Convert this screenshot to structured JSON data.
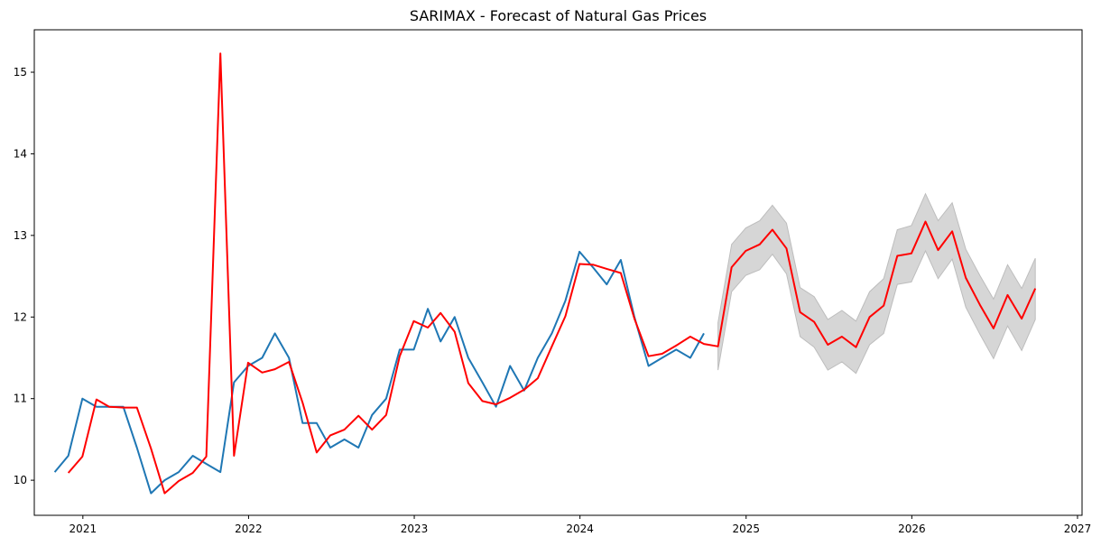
{
  "chart_data": {
    "type": "line",
    "title": "SARIMAX - Forecast of Natural Gas Prices",
    "xlabel": "",
    "ylabel": "",
    "xlim": [
      "2020-09-16",
      "2027-01-11"
    ],
    "ylim": [
      9.57,
      15.52
    ],
    "x_ticks": [
      "2021-01-01",
      "2022-01-01",
      "2023-01-01",
      "2024-01-01",
      "2025-01-01",
      "2026-01-01",
      "2027-01-01"
    ],
    "x_tick_labels": [
      "2021",
      "2022",
      "2023",
      "2024",
      "2025",
      "2026",
      "2027"
    ],
    "y_ticks": [
      10,
      11,
      12,
      13,
      14,
      15
    ],
    "y_tick_labels": [
      "10",
      "11",
      "12",
      "13",
      "14",
      "15"
    ],
    "grid": false,
    "legend": "none",
    "colors": {
      "actual": "#1f77b4",
      "forecast": "#ff0000",
      "confidence_band": "#c8c8c8"
    },
    "series": [
      {
        "x": [
          "2020-10-31",
          "2020-11-30",
          "2020-12-31",
          "2021-01-31",
          "2021-02-28",
          "2021-03-31",
          "2021-04-30",
          "2021-05-31",
          "2021-06-30",
          "2021-07-31",
          "2021-08-31",
          "2021-09-30",
          "2021-10-31",
          "2021-11-30",
          "2021-12-31",
          "2022-01-31",
          "2022-02-28",
          "2022-03-31",
          "2022-04-30",
          "2022-05-31",
          "2022-06-30",
          "2022-07-31",
          "2022-08-31",
          "2022-09-30",
          "2022-10-31",
          "2022-11-30",
          "2022-12-31",
          "2023-01-31",
          "2023-02-28",
          "2023-03-31",
          "2023-04-30",
          "2023-05-31",
          "2023-06-30",
          "2023-07-31",
          "2023-08-31",
          "2023-09-30",
          "2023-10-31",
          "2023-11-30",
          "2023-12-31",
          "2024-01-31",
          "2024-02-29",
          "2024-03-31",
          "2024-04-30",
          "2024-05-31",
          "2024-06-30",
          "2024-07-31",
          "2024-08-31",
          "2024-09-30"
        ],
        "values": [
          10.1,
          10.3,
          11.0,
          10.9,
          10.9,
          10.9,
          10.4,
          9.84,
          10.0,
          10.1,
          10.3,
          10.2,
          10.1,
          11.2,
          11.4,
          11.5,
          11.8,
          11.5,
          10.7,
          10.7,
          10.4,
          10.5,
          10.4,
          10.8,
          11.0,
          11.6,
          11.6,
          12.1,
          11.7,
          12.0,
          11.5,
          11.2,
          10.9,
          11.4,
          11.1,
          11.5,
          11.8,
          12.2,
          12.8,
          12.6,
          12.4,
          12.7,
          12.0,
          11.4,
          11.5,
          11.6,
          11.5,
          11.8
        ]
      },
      {
        "x": [
          "2020-11-30",
          "2020-12-31",
          "2021-01-31",
          "2021-02-28",
          "2021-03-31",
          "2021-04-30",
          "2021-05-31",
          "2021-06-30",
          "2021-07-31",
          "2021-08-31",
          "2021-09-30",
          "2021-10-31",
          "2021-11-30",
          "2021-12-31",
          "2022-01-31",
          "2022-02-28",
          "2022-03-31",
          "2022-04-30",
          "2022-05-31",
          "2022-06-30",
          "2022-07-31",
          "2022-08-31",
          "2022-09-30",
          "2022-10-31",
          "2022-11-30",
          "2022-12-31",
          "2023-01-31",
          "2023-02-28",
          "2023-03-31",
          "2023-04-30",
          "2023-05-31",
          "2023-06-30",
          "2023-07-31",
          "2023-08-31",
          "2023-09-30",
          "2023-10-31",
          "2023-11-30",
          "2023-12-31",
          "2024-01-31",
          "2024-02-29",
          "2024-03-31",
          "2024-04-30",
          "2024-05-31",
          "2024-06-30",
          "2024-07-31",
          "2024-08-31",
          "2024-09-30",
          "2024-10-31",
          "2024-11-30",
          "2024-12-31",
          "2025-01-31",
          "2025-02-28",
          "2025-03-31",
          "2025-04-30",
          "2025-05-31",
          "2025-06-30",
          "2025-07-31",
          "2025-08-31",
          "2025-09-30",
          "2025-10-31",
          "2025-11-30",
          "2025-12-31",
          "2026-01-31",
          "2026-02-28",
          "2026-03-31",
          "2026-04-30",
          "2026-05-31",
          "2026-06-30",
          "2026-07-31",
          "2026-08-31",
          "2026-09-30"
        ],
        "values": [
          10.09,
          10.29,
          10.99,
          10.9,
          10.89,
          10.89,
          10.39,
          9.84,
          9.99,
          10.09,
          10.29,
          15.23,
          10.3,
          11.44,
          11.32,
          11.36,
          11.45,
          10.95,
          10.34,
          10.55,
          10.62,
          10.79,
          10.62,
          10.8,
          11.52,
          11.95,
          11.87,
          12.05,
          11.82,
          11.19,
          10.97,
          10.93,
          11.01,
          11.11,
          11.25,
          11.64,
          12.01,
          12.65,
          12.64,
          12.59,
          12.54,
          11.98,
          11.52,
          11.55,
          11.65,
          11.76,
          11.67,
          11.64,
          12.61,
          12.81,
          12.89,
          13.07,
          12.84,
          12.06,
          11.94,
          11.66,
          11.76,
          11.63,
          12.0,
          12.14,
          12.75,
          12.78,
          13.17,
          12.82,
          13.05,
          12.48,
          12.15,
          11.86,
          12.27,
          11.98,
          12.35
        ]
      }
    ],
    "confidence_band": {
      "x": [
        "2024-10-31",
        "2024-11-30",
        "2024-12-31",
        "2025-01-31",
        "2025-02-28",
        "2025-03-31",
        "2025-04-30",
        "2025-05-31",
        "2025-06-30",
        "2025-07-31",
        "2025-08-31",
        "2025-09-30",
        "2025-10-31",
        "2025-11-30",
        "2025-12-31",
        "2026-01-31",
        "2026-02-28",
        "2026-03-31",
        "2026-04-30",
        "2026-05-31",
        "2026-06-30",
        "2026-07-31",
        "2026-08-31",
        "2026-09-30"
      ],
      "lower": [
        11.35,
        12.31,
        12.51,
        12.58,
        12.77,
        12.53,
        11.76,
        11.63,
        11.35,
        11.45,
        11.31,
        11.66,
        11.8,
        12.4,
        12.43,
        12.81,
        12.47,
        12.71,
        12.12,
        11.79,
        11.49,
        11.89,
        11.59,
        11.97
      ],
      "upper": [
        11.93,
        12.89,
        13.09,
        13.18,
        13.37,
        13.15,
        12.36,
        12.25,
        11.97,
        12.08,
        11.95,
        12.31,
        12.47,
        13.07,
        13.12,
        13.51,
        13.18,
        13.4,
        12.83,
        12.51,
        12.22,
        12.64,
        12.35,
        12.72
      ]
    }
  }
}
